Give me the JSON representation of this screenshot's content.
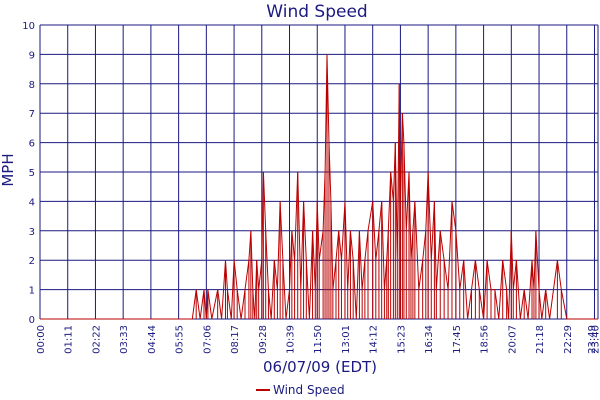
{
  "chart_data": {
    "type": "line",
    "title": "Wind Speed",
    "xlabel": "06/07/09 (EDT)",
    "ylabel": "MPH",
    "ylim": [
      0,
      10
    ],
    "yticks": [
      0,
      1,
      2,
      3,
      4,
      5,
      6,
      7,
      8,
      9,
      10
    ],
    "xticks": [
      "00:00",
      "01:11",
      "02:22",
      "03:33",
      "04:44",
      "05:55",
      "07:06",
      "08:17",
      "09:28",
      "10:39",
      "11:50",
      "13:01",
      "14:12",
      "15:23",
      "16:34",
      "17:45",
      "18:56",
      "20:07",
      "21:18",
      "22:29",
      "23:40",
      "23:49"
    ],
    "grid": true,
    "legend_position": "bottom-center",
    "colors": {
      "series": "#bb0000",
      "grid": "#1a1a80",
      "text": "#1a1a80"
    },
    "series": [
      {
        "name": "Wind Speed",
        "x": [
          "00:00",
          "05:55",
          "06:30",
          "06:40",
          "06:50",
          "07:00",
          "07:06",
          "07:10",
          "07:20",
          "07:35",
          "07:45",
          "07:55",
          "08:00",
          "08:10",
          "08:17",
          "08:25",
          "08:35",
          "08:45",
          "08:55",
          "09:00",
          "09:05",
          "09:10",
          "09:15",
          "09:20",
          "09:28",
          "09:32",
          "09:38",
          "09:45",
          "09:52",
          "10:00",
          "10:08",
          "10:15",
          "10:22",
          "10:30",
          "10:39",
          "10:45",
          "10:52",
          "11:00",
          "11:08",
          "11:15",
          "11:22",
          "11:30",
          "11:38",
          "11:45",
          "11:50",
          "11:55",
          "12:05",
          "12:10",
          "12:15",
          "12:20",
          "12:25",
          "12:30",
          "12:38",
          "12:45",
          "12:52",
          "13:01",
          "13:08",
          "13:15",
          "13:22",
          "13:30",
          "13:38",
          "13:45",
          "13:52",
          "14:00",
          "14:12",
          "14:20",
          "14:28",
          "14:35",
          "14:42",
          "14:48",
          "14:52",
          "14:58",
          "15:05",
          "15:10",
          "15:15",
          "15:20",
          "15:23",
          "15:28",
          "15:32",
          "15:38",
          "15:45",
          "15:50",
          "15:55",
          "16:00",
          "16:10",
          "16:20",
          "16:28",
          "16:34",
          "16:42",
          "16:50",
          "16:55",
          "17:05",
          "17:15",
          "17:25",
          "17:35",
          "17:45",
          "17:55",
          "18:05",
          "18:15",
          "18:25",
          "18:35",
          "18:45",
          "18:56",
          "19:05",
          "19:15",
          "19:25",
          "19:35",
          "19:45",
          "19:55",
          "20:00",
          "20:07",
          "20:12",
          "20:20",
          "20:30",
          "20:40",
          "20:50",
          "21:00",
          "21:05",
          "21:10",
          "21:18",
          "21:25",
          "21:35",
          "21:45",
          "22:05",
          "22:15",
          "22:29",
          "22:35",
          "22:45",
          "23:00",
          "23:49"
        ],
        "values": [
          0,
          0,
          0,
          1,
          0,
          1,
          0,
          1,
          0,
          1,
          0,
          2,
          1,
          0,
          2,
          1,
          0,
          1,
          2,
          3,
          1,
          0,
          2,
          1,
          2,
          5,
          3,
          1,
          0,
          2,
          1,
          4,
          2,
          0,
          1,
          3,
          2,
          5,
          1,
          4,
          2,
          0,
          3,
          1,
          4,
          2,
          3,
          5,
          9,
          6,
          4,
          1,
          2,
          3,
          2,
          4,
          1,
          3,
          2,
          0,
          3,
          1,
          2,
          3,
          4,
          2,
          3,
          4,
          1,
          2,
          3,
          5,
          4,
          6,
          2,
          8,
          4,
          7,
          6,
          3,
          5,
          2,
          3,
          4,
          1,
          2,
          3,
          5,
          2,
          4,
          1,
          3,
          2,
          1,
          4,
          3,
          1,
          2,
          0,
          1,
          2,
          1,
          0,
          2,
          1,
          1,
          0,
          2,
          1,
          0,
          3,
          1,
          2,
          0,
          1,
          0,
          2,
          1,
          3,
          1,
          0,
          1,
          0,
          2,
          1,
          0,
          0,
          0,
          0,
          0
        ]
      }
    ]
  }
}
